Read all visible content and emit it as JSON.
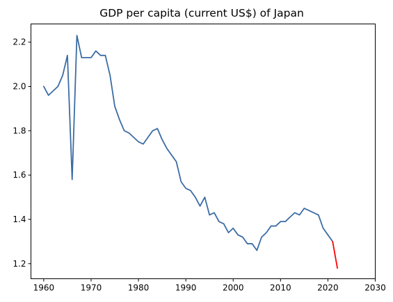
{
  "chart_data": {
    "type": "line",
    "title": "GDP per capita (current US$) of Japan",
    "xlabel": "",
    "ylabel": "",
    "xlim": [
      1957.3,
      2030
    ],
    "ylim": [
      1.132,
      2.282
    ],
    "x_ticks": [
      1960,
      1970,
      1980,
      1990,
      2000,
      2010,
      2020,
      2030
    ],
    "y_ticks": [
      1.2,
      1.4,
      1.6,
      1.8,
      2.0,
      2.2
    ],
    "grid": false,
    "legend": "none",
    "series": [
      {
        "color": "#3b6ca3",
        "points": [
          [
            1960,
            2.0
          ],
          [
            1961,
            1.96
          ],
          [
            1962,
            1.98
          ],
          [
            1963,
            2.0
          ],
          [
            1964,
            2.05
          ],
          [
            1965,
            2.14
          ],
          [
            1966,
            1.58
          ],
          [
            1967,
            2.23
          ],
          [
            1968,
            2.13
          ],
          [
            1969,
            2.13
          ],
          [
            1970,
            2.13
          ],
          [
            1971,
            2.16
          ],
          [
            1972,
            2.14
          ],
          [
            1973,
            2.14
          ],
          [
            1974,
            2.05
          ],
          [
            1975,
            1.91
          ],
          [
            1976,
            1.85
          ],
          [
            1977,
            1.8
          ],
          [
            1978,
            1.79
          ],
          [
            1979,
            1.77
          ],
          [
            1980,
            1.75
          ],
          [
            1981,
            1.74
          ],
          [
            1982,
            1.77
          ],
          [
            1983,
            1.8
          ],
          [
            1984,
            1.81
          ],
          [
            1985,
            1.76
          ],
          [
            1986,
            1.72
          ],
          [
            1987,
            1.69
          ],
          [
            1988,
            1.66
          ],
          [
            1989,
            1.57
          ],
          [
            1990,
            1.54
          ],
          [
            1991,
            1.53
          ],
          [
            1992,
            1.5
          ],
          [
            1993,
            1.46
          ],
          [
            1994,
            1.5
          ],
          [
            1995,
            1.42
          ],
          [
            1996,
            1.43
          ],
          [
            1997,
            1.39
          ],
          [
            1998,
            1.38
          ],
          [
            1999,
            1.34
          ],
          [
            2000,
            1.36
          ],
          [
            2001,
            1.33
          ],
          [
            2002,
            1.32
          ],
          [
            2003,
            1.29
          ],
          [
            2004,
            1.29
          ],
          [
            2005,
            1.26
          ],
          [
            2006,
            1.32
          ],
          [
            2007,
            1.34
          ],
          [
            2008,
            1.37
          ],
          [
            2009,
            1.37
          ],
          [
            2010,
            1.39
          ],
          [
            2011,
            1.39
          ],
          [
            2012,
            1.41
          ],
          [
            2013,
            1.43
          ],
          [
            2014,
            1.42
          ],
          [
            2015,
            1.45
          ],
          [
            2016,
            1.44
          ],
          [
            2017,
            1.43
          ],
          [
            2018,
            1.42
          ],
          [
            2019,
            1.36
          ],
          [
            2020,
            1.33
          ],
          [
            2021,
            1.3
          ]
        ]
      },
      {
        "color": "#ff0000",
        "points": [
          [
            2021,
            1.3
          ],
          [
            2022,
            1.18
          ]
        ]
      }
    ]
  }
}
